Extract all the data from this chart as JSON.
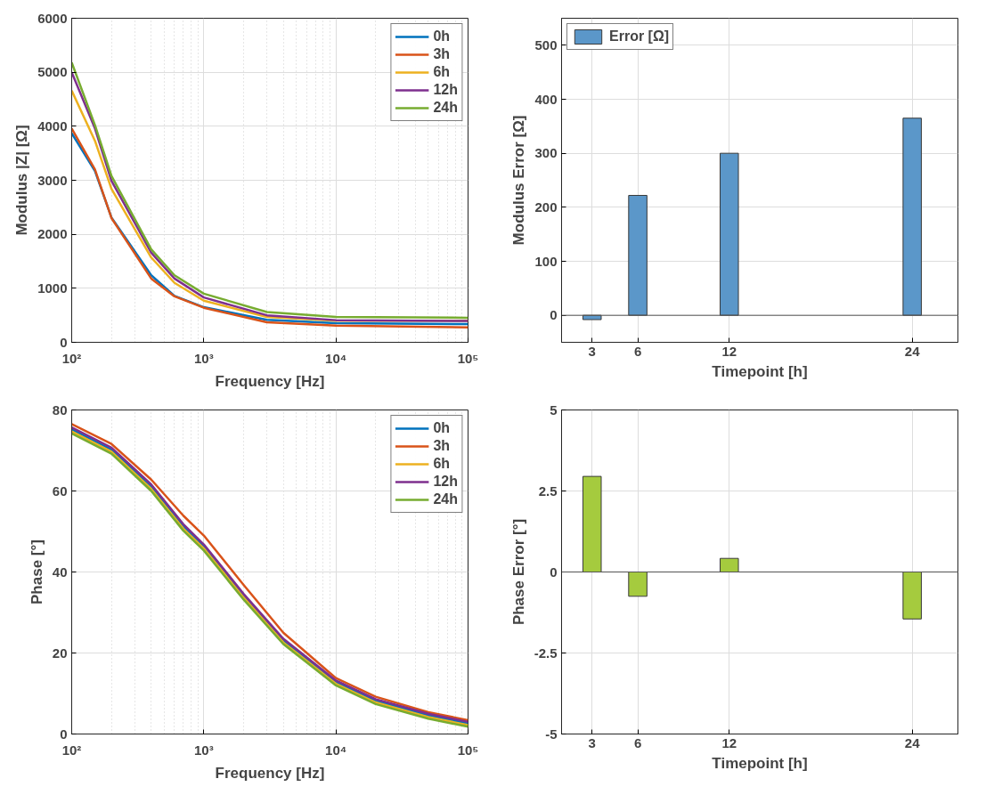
{
  "chart_data": [
    {
      "type": "line",
      "xlabel": "Frequency [Hz]",
      "ylabel": "Modulus |Z| [Ω]",
      "log": "x",
      "grid": true,
      "legend": "top right",
      "xlim": [
        100,
        100000
      ],
      "xticks": [
        {
          "value": 100,
          "label": "10²"
        },
        {
          "value": 1000,
          "label": "10³"
        },
        {
          "value": 10000,
          "label": "10⁴"
        },
        {
          "value": 100000,
          "label": "10⁵"
        }
      ],
      "ylim": [
        0,
        6000
      ],
      "yticks": [
        0,
        1000,
        2000,
        3000,
        4000,
        5000,
        6000
      ],
      "x": [
        100,
        150,
        200,
        400,
        600,
        1000,
        3000,
        10000,
        100000
      ],
      "series": [
        {
          "name": "0h",
          "color": "#0072bd",
          "values": [
            3870,
            3170,
            2310,
            1240,
            860,
            650,
            415,
            355,
            337
          ]
        },
        {
          "name": "3h",
          "color": "#d95319",
          "values": [
            3960,
            3200,
            2300,
            1180,
            850,
            640,
            370,
            310,
            278
          ]
        },
        {
          "name": "6h",
          "color": "#edb120",
          "values": [
            4660,
            3730,
            2840,
            1570,
            1100,
            770,
            470,
            400,
            400
          ]
        },
        {
          "name": "12h",
          "color": "#7e2f8e",
          "values": [
            5000,
            3960,
            2990,
            1660,
            1180,
            830,
            500,
            410,
            396
          ]
        },
        {
          "name": "24h",
          "color": "#77ac30",
          "values": [
            5180,
            4020,
            3080,
            1720,
            1240,
            900,
            560,
            470,
            455
          ]
        }
      ]
    },
    {
      "type": "bar",
      "xlabel": "Timepoint [h]",
      "ylabel": "Modulus Error [Ω]",
      "grid": true,
      "legend": "top left",
      "x": [
        3,
        6,
        12,
        24
      ],
      "xlim": [
        1,
        27
      ],
      "xticks": [
        3,
        6,
        12,
        24
      ],
      "ylim": [
        -50,
        550
      ],
      "yticks": [
        0,
        100,
        200,
        300,
        400,
        500
      ],
      "series": [
        {
          "name": "Error [Ω]",
          "color": "#5b97c9",
          "values": [
            -8,
            222,
            300,
            365
          ]
        }
      ]
    },
    {
      "type": "line",
      "xlabel": "Frequency [Hz]",
      "ylabel": "Phase [°]",
      "log": "x",
      "grid": true,
      "legend": "top right",
      "xlim": [
        100,
        100000
      ],
      "xticks": [
        {
          "value": 100,
          "label": "10²"
        },
        {
          "value": 1000,
          "label": "10³"
        },
        {
          "value": 10000,
          "label": "10⁴"
        },
        {
          "value": 100000,
          "label": "10⁵"
        }
      ],
      "ylim": [
        0,
        80
      ],
      "yticks": [
        0,
        20,
        40,
        60,
        80
      ],
      "x": [
        100,
        200,
        400,
        700,
        1000,
        2000,
        4000,
        10000,
        20000,
        50000,
        100000
      ],
      "series": [
        {
          "name": "0h",
          "color": "#0072bd",
          "values": [
            75.2,
            70.2,
            61.0,
            51.2,
            46.3,
            34.1,
            23.0,
            12.8,
            8.2,
            4.6,
            2.6
          ]
        },
        {
          "name": "3h",
          "color": "#d95319",
          "values": [
            76.5,
            71.6,
            62.8,
            53.9,
            49.0,
            36.8,
            25.0,
            13.8,
            9.2,
            5.4,
            3.4
          ]
        },
        {
          "name": "6h",
          "color": "#edb120",
          "values": [
            74.7,
            69.7,
            60.5,
            50.7,
            45.8,
            33.7,
            22.6,
            12.4,
            7.8,
            4.2,
            2.2
          ]
        },
        {
          "name": "12h",
          "color": "#7e2f8e",
          "values": [
            75.7,
            70.7,
            61.6,
            51.8,
            46.8,
            34.6,
            23.5,
            13.2,
            8.6,
            5.0,
            3.0
          ]
        },
        {
          "name": "24h",
          "color": "#77ac30",
          "values": [
            74.2,
            69.2,
            60.0,
            50.2,
            45.3,
            33.2,
            22.2,
            12.0,
            7.4,
            3.8,
            1.8
          ]
        }
      ]
    },
    {
      "type": "bar",
      "xlabel": "Timepoint [h]",
      "ylabel": "Phase Error [°]",
      "grid": true,
      "x": [
        3,
        6,
        12,
        24
      ],
      "xlim": [
        1,
        27
      ],
      "xticks": [
        3,
        6,
        12,
        24
      ],
      "ylim": [
        -5,
        5
      ],
      "yticks": [
        -5,
        -2.5,
        0,
        2.5,
        5
      ],
      "series": [
        {
          "color": "#a5cb3e",
          "values": [
            2.95,
            -0.75,
            0.42,
            -1.45
          ]
        }
      ]
    }
  ]
}
